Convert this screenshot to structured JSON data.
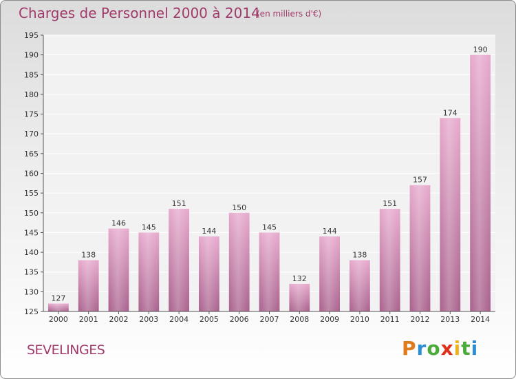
{
  "header": {
    "title": "Charges de Personnel 2000 à 2014",
    "subtitle": "(en milliers d'€)"
  },
  "footer": {
    "commune": "SEVELINGES",
    "logo_text": "Proxiti"
  },
  "colors": {
    "bar_top": "#e6a8cc",
    "bar_bottom": "#a8608c",
    "title": "#a03a6a"
  },
  "chart_data": {
    "type": "bar",
    "title": "Charges de Personnel 2000 à 2014",
    "subtitle": "(en milliers d'€)",
    "xlabel": "",
    "ylabel": "",
    "categories": [
      "2000",
      "2001",
      "2002",
      "2003",
      "2004",
      "2005",
      "2006",
      "2007",
      "2008",
      "2009",
      "2010",
      "2011",
      "2012",
      "2013",
      "2014"
    ],
    "values": [
      127,
      138,
      146,
      145,
      151,
      144,
      150,
      145,
      132,
      144,
      138,
      151,
      157,
      174,
      190
    ],
    "ylim": [
      125,
      195
    ],
    "yticks": [
      125,
      130,
      135,
      140,
      145,
      150,
      155,
      160,
      165,
      170,
      175,
      180,
      185,
      190,
      195
    ],
    "grid": true,
    "legend": "none"
  }
}
